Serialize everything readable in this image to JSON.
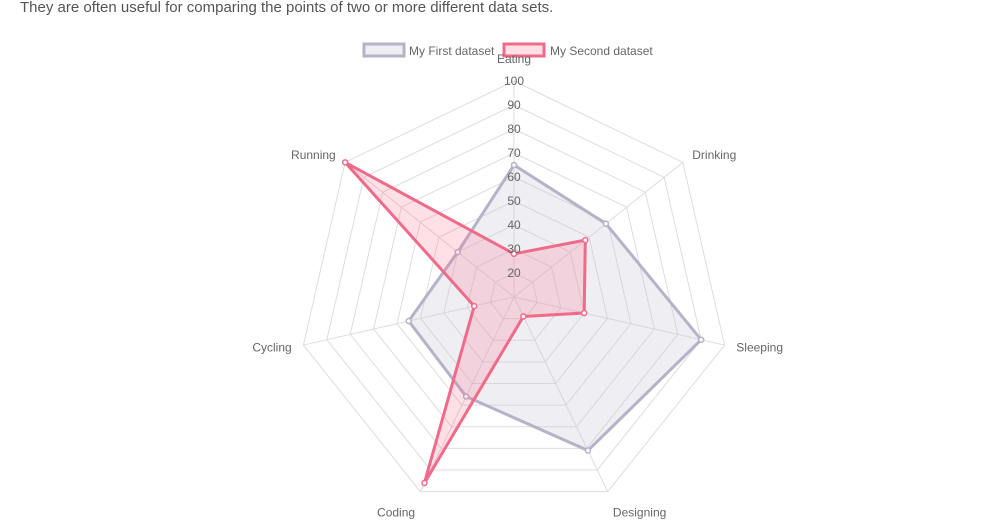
{
  "intro_text": "They are often useful for comparing the points of two or more different data sets.",
  "colors": {
    "grid": "#dddddd",
    "tick_text": "#666666",
    "label_text": "#666666",
    "series1_stroke": "#b6b2c8",
    "series1_fill": "rgba(201,198,216,0.30)",
    "series2_stroke": "#f06a8a",
    "series2_fill": "rgba(255,99,132,0.20)"
  },
  "chart_data": {
    "type": "radar",
    "title": "",
    "legend_position": "top",
    "categories": [
      "Eating",
      "Drinking",
      "Sleeping",
      "Designing",
      "Coding",
      "Cycling",
      "Running"
    ],
    "r_ticks": [
      20,
      30,
      40,
      50,
      60,
      70,
      80,
      90,
      100
    ],
    "rlim": [
      10,
      100
    ],
    "series": [
      {
        "name": "My First dataset",
        "values": [
          65,
          59,
          90,
          81,
          56,
          55,
          40
        ]
      },
      {
        "name": "My Second dataset",
        "values": [
          28,
          48,
          40,
          19,
          96,
          27,
          100
        ]
      }
    ]
  }
}
